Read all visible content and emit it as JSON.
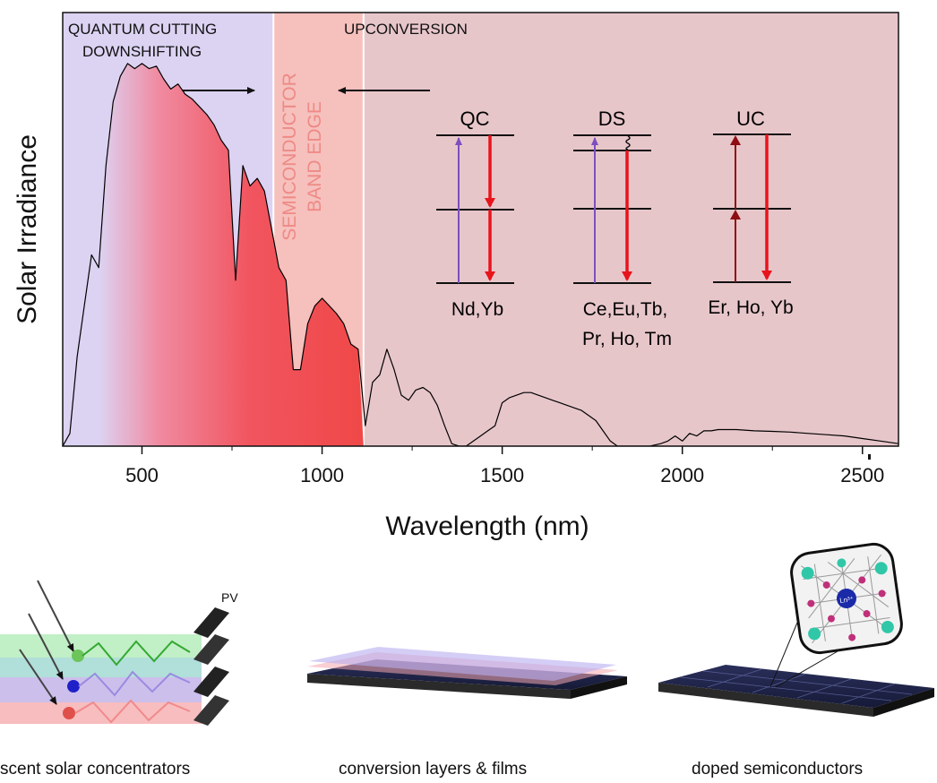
{
  "chart_data": {
    "type": "area",
    "xlabel": "Wavelength (nm)",
    "ylabel": "Solar Irradiance",
    "xlim": [
      280,
      2600
    ],
    "ylim": [
      0,
      1.7
    ],
    "x_ticks": [
      500,
      1000,
      1500,
      2000,
      2500
    ],
    "x_tick_labels": [
      "500",
      "1000",
      "1500",
      "2000",
      "2500"
    ],
    "grid": false,
    "regions": [
      {
        "name": "quantum-cutting-downshifting",
        "labels": [
          "QUANTUM CUTTING",
          "DOWNSHIFTING"
        ],
        "from": 280,
        "to": 865,
        "color": "#dcd3f3"
      },
      {
        "name": "band-edge",
        "labels": [
          "SEMICONDUCTOR",
          "BAND EDGE"
        ],
        "from": 865,
        "to": 1115,
        "color": "#f6c0bd",
        "text_color": "#ee8a86"
      },
      {
        "name": "upconversion",
        "labels": [
          "UPCONVERSION"
        ],
        "from": 1115,
        "to": 2600,
        "color": "#e7c6ca"
      }
    ],
    "spectrum": {
      "x": [
        280,
        300,
        320,
        340,
        360,
        380,
        400,
        420,
        440,
        460,
        480,
        500,
        520,
        540,
        560,
        580,
        600,
        620,
        640,
        660,
        680,
        700,
        720,
        740,
        760,
        780,
        800,
        820,
        840,
        860,
        880,
        900,
        920,
        940,
        960,
        980,
        1000,
        1020,
        1040,
        1060,
        1080,
        1100,
        1120,
        1140,
        1160,
        1180,
        1200,
        1220,
        1240,
        1260,
        1280,
        1300,
        1320,
        1340,
        1360,
        1380,
        1400,
        1420,
        1440,
        1460,
        1480,
        1500,
        1520,
        1540,
        1560,
        1580,
        1600,
        1620,
        1640,
        1660,
        1680,
        1700,
        1720,
        1740,
        1760,
        1780,
        1800,
        1820,
        1850,
        1880,
        1910,
        1940,
        1960,
        1980,
        2000,
        2020,
        2040,
        2060,
        2080,
        2100,
        2150,
        2200,
        2250,
        2300,
        2350,
        2400,
        2450,
        2500,
        2550,
        2600
      ],
      "y": [
        0.0,
        0.05,
        0.35,
        0.55,
        0.75,
        0.7,
        1.1,
        1.35,
        1.45,
        1.5,
        1.48,
        1.5,
        1.48,
        1.49,
        1.44,
        1.4,
        1.42,
        1.38,
        1.36,
        1.33,
        1.3,
        1.26,
        1.2,
        1.16,
        0.65,
        1.1,
        1.02,
        1.05,
        1.0,
        0.85,
        0.7,
        0.65,
        0.3,
        0.3,
        0.48,
        0.55,
        0.58,
        0.55,
        0.52,
        0.48,
        0.4,
        0.38,
        0.08,
        0.25,
        0.28,
        0.38,
        0.3,
        0.2,
        0.18,
        0.22,
        0.23,
        0.21,
        0.16,
        0.08,
        0.01,
        0.0,
        0.0,
        0.02,
        0.04,
        0.06,
        0.08,
        0.17,
        0.19,
        0.2,
        0.21,
        0.21,
        0.2,
        0.19,
        0.18,
        0.17,
        0.16,
        0.15,
        0.14,
        0.12,
        0.1,
        0.06,
        0.02,
        0.0,
        0.0,
        0.0,
        0.0,
        0.01,
        0.02,
        0.04,
        0.02,
        0.05,
        0.04,
        0.06,
        0.06,
        0.065,
        0.065,
        0.06,
        0.058,
        0.055,
        0.05,
        0.045,
        0.04,
        0.03,
        0.02,
        0.01
      ]
    }
  },
  "diagram": {
    "processes": [
      {
        "title": "QC",
        "ions": [
          "Nd,Yb"
        ]
      },
      {
        "title": "DS",
        "ions": [
          "Ce,Eu,Tb,",
          "Pr, Ho, Tm"
        ]
      },
      {
        "title": "UC",
        "ions": [
          "Er, Ho, Yb"
        ]
      }
    ],
    "colors": {
      "purple": "#7b4fc0",
      "red": "#e8141b",
      "darkred": "#8e0e12"
    }
  },
  "illustrations": {
    "pv_label": "PV",
    "ion_label": "Ln³⁺",
    "captions": [
      "scent solar concentrators",
      "conversion layers & films",
      "doped semiconductors"
    ]
  }
}
